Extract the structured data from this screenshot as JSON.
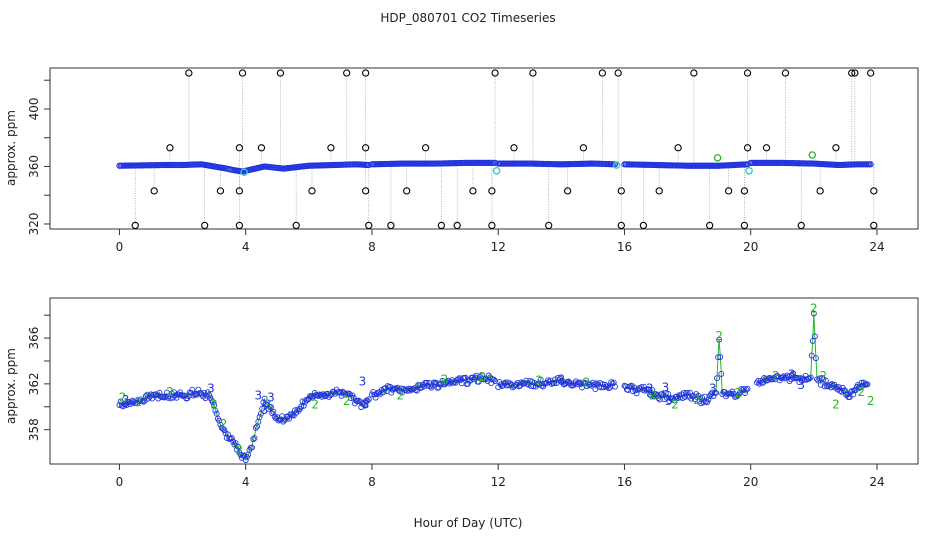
{
  "chart_data": {
    "title": "HDP_080701  CO2 Timeseries",
    "xlabel": "Hour of Day (UTC)",
    "colors": {
      "axes": "#333333",
      "black": "#000000",
      "blue": "#2233dd",
      "cyan": "#33cccc",
      "green": "#22bb22",
      "gray": "#999999"
    },
    "panels": [
      {
        "type": "scatter",
        "ylabel": "approx. ppm",
        "xlim": [
          -2.2,
          25.3
        ],
        "ylim": [
          316.5,
          428.5
        ],
        "xticks": [
          0,
          4,
          8,
          12,
          16,
          20,
          24
        ],
        "yticks": [
          320,
          360,
          400
        ],
        "yticklabels": [
          "320",
          "360",
          "400"
        ],
        "extra_yticks": [
          340,
          380,
          420
        ],
        "baseline_segments": [
          {
            "x": [
              0.0,
              1.4,
              2.0,
              2.6,
              3.0,
              3.4,
              3.6,
              3.9,
              4.3,
              4.6,
              5.2,
              6.0,
              6.8,
              7.5,
              7.9
            ],
            "y": [
              360.5,
              361.0,
              361.0,
              361.5,
              360.0,
              358.5,
              357.5,
              356.5,
              358.5,
              360.0,
              358.5,
              360.5,
              361.0,
              361.5,
              361.0
            ]
          },
          {
            "x": [
              8.0,
              9.0,
              10.0,
              11.0,
              11.9
            ],
            "y": [
              361.5,
              362.0,
              362.0,
              362.5,
              362.5
            ]
          },
          {
            "x": [
              12.0,
              13.0,
              14.0,
              15.0,
              15.7
            ],
            "y": [
              362.0,
              362.0,
              361.5,
              362.0,
              361.5
            ]
          },
          {
            "x": [
              16.0,
              17.0,
              18.0,
              19.0,
              19.9
            ],
            "y": [
              361.5,
              361.0,
              360.5,
              360.5,
              361.5
            ]
          },
          {
            "x": [
              20.0,
              21.0,
              22.0,
              22.8,
              23.4,
              23.8
            ],
            "y": [
              362.5,
              362.5,
              362.0,
              361.0,
              361.5,
              361.5
            ]
          }
        ],
        "cal_points": [
          {
            "x": 0.5,
            "y": 319.0
          },
          {
            "x": 1.1,
            "y": 343.0
          },
          {
            "x": 1.6,
            "y": 373.0
          },
          {
            "x": 2.2,
            "y": 425.0
          },
          {
            "x": 2.7,
            "y": 319.0
          },
          {
            "x": 3.2,
            "y": 343.0
          },
          {
            "x": 3.8,
            "y": 319.0
          },
          {
            "x": 3.8,
            "y": 343.0
          },
          {
            "x": 3.8,
            "y": 373.0
          },
          {
            "x": 3.9,
            "y": 425.0
          },
          {
            "x": 4.5,
            "y": 373.0
          },
          {
            "x": 5.1,
            "y": 425.0
          },
          {
            "x": 5.6,
            "y": 319.0
          },
          {
            "x": 6.1,
            "y": 343.0
          },
          {
            "x": 6.7,
            "y": 373.0
          },
          {
            "x": 7.2,
            "y": 425.0
          },
          {
            "x": 7.8,
            "y": 425.0
          },
          {
            "x": 7.8,
            "y": 373.0
          },
          {
            "x": 7.8,
            "y": 343.0
          },
          {
            "x": 7.9,
            "y": 319.0
          },
          {
            "x": 8.6,
            "y": 319.0
          },
          {
            "x": 9.1,
            "y": 343.0
          },
          {
            "x": 9.7,
            "y": 373.0
          },
          {
            "x": 10.2,
            "y": 319.0
          },
          {
            "x": 10.7,
            "y": 319.0
          },
          {
            "x": 11.2,
            "y": 343.0
          },
          {
            "x": 11.8,
            "y": 319.0
          },
          {
            "x": 11.8,
            "y": 343.0
          },
          {
            "x": 11.9,
            "y": 425.0
          },
          {
            "x": 12.5,
            "y": 373.0
          },
          {
            "x": 13.1,
            "y": 425.0
          },
          {
            "x": 13.6,
            "y": 319.0
          },
          {
            "x": 14.2,
            "y": 343.0
          },
          {
            "x": 14.7,
            "y": 373.0
          },
          {
            "x": 15.3,
            "y": 425.0
          },
          {
            "x": 15.8,
            "y": 425.0
          },
          {
            "x": 15.9,
            "y": 343.0
          },
          {
            "x": 15.9,
            "y": 319.0
          },
          {
            "x": 16.6,
            "y": 319.0
          },
          {
            "x": 17.1,
            "y": 343.0
          },
          {
            "x": 17.7,
            "y": 373.0
          },
          {
            "x": 18.2,
            "y": 425.0
          },
          {
            "x": 18.7,
            "y": 319.0
          },
          {
            "x": 19.3,
            "y": 343.0
          },
          {
            "x": 19.8,
            "y": 319.0
          },
          {
            "x": 19.8,
            "y": 343.0
          },
          {
            "x": 19.9,
            "y": 373.0
          },
          {
            "x": 19.9,
            "y": 425.0
          },
          {
            "x": 20.5,
            "y": 373.0
          },
          {
            "x": 21.1,
            "y": 425.0
          },
          {
            "x": 21.6,
            "y": 319.0
          },
          {
            "x": 22.2,
            "y": 343.0
          },
          {
            "x": 22.7,
            "y": 373.0
          },
          {
            "x": 23.2,
            "y": 425.0
          },
          {
            "x": 23.3,
            "y": 425.0
          },
          {
            "x": 23.8,
            "y": 425.0
          },
          {
            "x": 23.9,
            "y": 343.0
          },
          {
            "x": 23.9,
            "y": 319.0
          }
        ],
        "cyan_points": [
          {
            "x": 3.95,
            "y": 356.0
          },
          {
            "x": 11.95,
            "y": 357.0
          },
          {
            "x": 19.95,
            "y": 357.0
          },
          {
            "x": 15.75,
            "y": 361.0
          }
        ],
        "green_points": [
          {
            "x": 18.95,
            "y": 366.0
          },
          {
            "x": 21.95,
            "y": 368.0
          }
        ]
      },
      {
        "type": "line",
        "ylabel": "approx. ppm",
        "xlim": [
          -2.2,
          25.3
        ],
        "ylim": [
          355.0,
          369.5
        ],
        "xticks": [
          0,
          4,
          8,
          12,
          16,
          20,
          24
        ],
        "yticks": [
          358,
          362,
          366
        ],
        "yticklabels": [
          "358",
          "362",
          "366"
        ],
        "extra_yticks": [
          360,
          364,
          368
        ],
        "segments": [
          {
            "x": [
              0.0,
              0.3,
              0.6,
              1.0,
              1.5,
              2.0,
              2.5,
              2.8,
              3.0,
              3.2,
              3.4,
              3.6,
              3.8,
              4.0,
              4.2,
              4.4,
              4.6,
              4.8,
              5.0,
              5.3,
              5.6,
              6.0,
              6.3,
              6.6,
              7.0,
              7.3,
              7.5,
              7.7,
              7.9
            ],
            "y": [
              360.3,
              360.3,
              360.5,
              361.0,
              361.0,
              361.0,
              361.2,
              361.0,
              360.0,
              358.5,
              357.5,
              357.0,
              356.0,
              355.5,
              356.5,
              359.0,
              360.5,
              360.0,
              359.0,
              359.0,
              359.5,
              361.0,
              361.0,
              361.0,
              361.2,
              361.0,
              360.5,
              360.2,
              360.8
            ]
          },
          {
            "x": [
              8.0,
              8.5,
              9.0,
              9.5,
              10.0,
              10.5,
              11.0,
              11.5,
              11.9
            ],
            "y": [
              361.0,
              361.5,
              361.5,
              361.8,
              362.0,
              362.2,
              362.3,
              362.5,
              362.4
            ]
          },
          {
            "x": [
              12.0,
              12.5,
              13.0,
              13.5,
              14.0,
              14.5,
              15.0,
              15.5,
              15.7
            ],
            "y": [
              362.0,
              362.0,
              362.1,
              362.0,
              362.2,
              362.0,
              361.9,
              361.8,
              361.8
            ]
          },
          {
            "x": [
              16.0,
              16.5,
              17.0,
              17.5,
              18.0,
              18.5,
              18.9,
              19.0,
              19.1,
              19.5,
              19.9
            ],
            "y": [
              361.8,
              361.5,
              361.0,
              360.8,
              361.0,
              360.6,
              361.2,
              365.8,
              361.2,
              361.0,
              361.5
            ]
          },
          {
            "x": [
              20.2,
              20.5,
              21.0,
              21.5,
              21.9,
              22.0,
              22.1,
              22.5,
              22.8,
              23.1,
              23.4,
              23.7
            ],
            "y": [
              362.2,
              362.5,
              362.6,
              362.5,
              362.3,
              368.0,
              362.4,
              362.0,
              361.5,
              361.0,
              361.8,
              362.0
            ]
          }
        ],
        "green_labels": [
          {
            "x": 0.1,
            "y": 360.8,
            "t": "2"
          },
          {
            "x": 0.6,
            "y": 360.4,
            "t": "2"
          },
          {
            "x": 1.6,
            "y": 361.3,
            "t": "2"
          },
          {
            "x": 3.0,
            "y": 360.2,
            "t": "2"
          },
          {
            "x": 3.3,
            "y": 358.5,
            "t": "2"
          },
          {
            "x": 3.8,
            "y": 356.2,
            "t": "2"
          },
          {
            "x": 4.7,
            "y": 360.2,
            "t": "2"
          },
          {
            "x": 6.2,
            "y": 360.2,
            "t": "2"
          },
          {
            "x": 7.2,
            "y": 360.5,
            "t": "2"
          },
          {
            "x": 8.9,
            "y": 361.0,
            "t": "2"
          },
          {
            "x": 10.3,
            "y": 362.4,
            "t": "2"
          },
          {
            "x": 11.5,
            "y": 362.6,
            "t": "2"
          },
          {
            "x": 13.3,
            "y": 362.3,
            "t": "2"
          },
          {
            "x": 14.8,
            "y": 362.1,
            "t": "2"
          },
          {
            "x": 16.9,
            "y": 361.0,
            "t": "2"
          },
          {
            "x": 17.6,
            "y": 360.2,
            "t": "2"
          },
          {
            "x": 18.3,
            "y": 360.6,
            "t": "2"
          },
          {
            "x": 19.0,
            "y": 366.2,
            "t": "2"
          },
          {
            "x": 19.6,
            "y": 361.2,
            "t": "2"
          },
          {
            "x": 20.8,
            "y": 362.7,
            "t": "2"
          },
          {
            "x": 22.0,
            "y": 368.6,
            "t": "2"
          },
          {
            "x": 22.3,
            "y": 362.7,
            "t": "2"
          },
          {
            "x": 22.7,
            "y": 360.2,
            "t": "2"
          },
          {
            "x": 23.5,
            "y": 361.3,
            "t": "2"
          },
          {
            "x": 23.8,
            "y": 360.5,
            "t": "2"
          }
        ],
        "blue_labels": [
          {
            "x": 0.2,
            "y": 360.6,
            "t": "3"
          },
          {
            "x": 2.9,
            "y": 361.6,
            "t": "3"
          },
          {
            "x": 4.4,
            "y": 361.0,
            "t": "3"
          },
          {
            "x": 4.6,
            "y": 359.7,
            "t": "3"
          },
          {
            "x": 4.8,
            "y": 360.8,
            "t": "3"
          },
          {
            "x": 7.7,
            "y": 362.2,
            "t": "3"
          },
          {
            "x": 7.8,
            "y": 360.2,
            "t": "3"
          },
          {
            "x": 14.0,
            "y": 362.4,
            "t": "3"
          },
          {
            "x": 16.8,
            "y": 361.6,
            "t": "3"
          },
          {
            "x": 17.3,
            "y": 361.7,
            "t": "3"
          },
          {
            "x": 17.4,
            "y": 360.5,
            "t": "3"
          },
          {
            "x": 18.8,
            "y": 361.6,
            "t": "3"
          },
          {
            "x": 21.3,
            "y": 362.8,
            "t": "3"
          },
          {
            "x": 21.6,
            "y": 361.9,
            "t": "3"
          }
        ]
      }
    ]
  }
}
